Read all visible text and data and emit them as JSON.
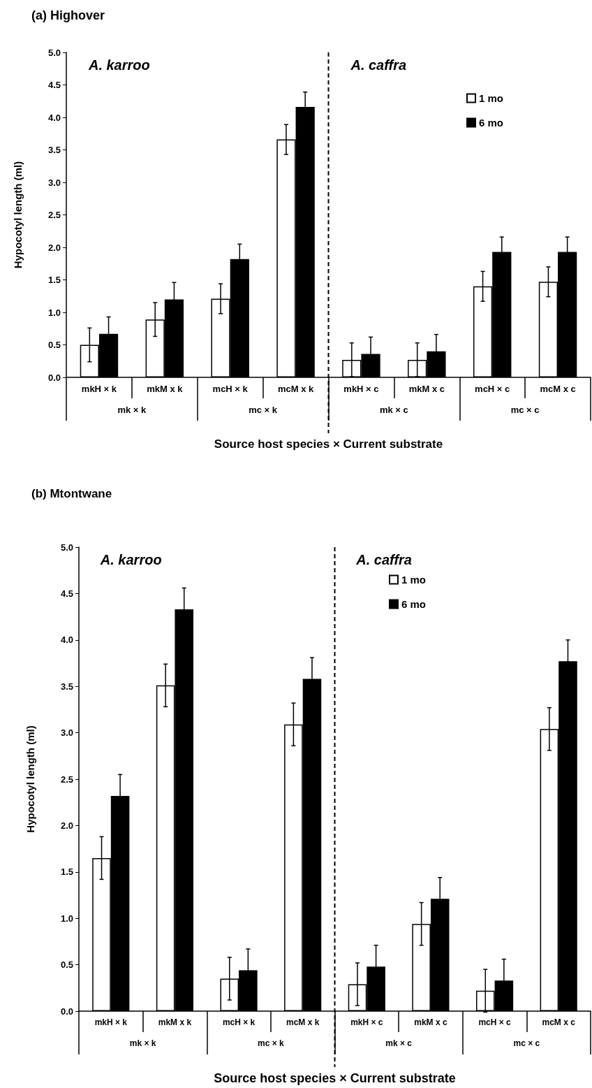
{
  "chart_data": [
    {
      "type": "bar",
      "title": "(a) Highover",
      "xlabel": "Source host species × Current substrate",
      "ylabel": "Hypocotyl length (ml)",
      "categories": [
        "mkH × k",
        "mkM x k",
        "mcH × k",
        "mcM x k",
        "mkH × c",
        "mkM x c",
        "mcH × c",
        "mcM x c"
      ],
      "series": [
        {
          "name": "1 mo",
          "color": "#ffffff",
          "values": [
            0.5,
            0.89,
            1.21,
            3.66,
            0.27,
            0.27,
            1.4,
            1.47
          ],
          "errors": [
            0.26,
            0.26,
            0.23,
            0.23,
            0.26,
            0.26,
            0.23,
            0.23
          ]
        },
        {
          "name": "6 mo",
          "color": "#000000",
          "values": [
            0.67,
            1.2,
            1.82,
            4.16,
            0.36,
            0.4,
            1.93,
            1.93
          ],
          "errors": [
            0.26,
            0.26,
            0.23,
            0.23,
            0.26,
            0.26,
            0.23,
            0.23
          ]
        }
      ],
      "annotations": [
        "A. karroo",
        "A. caffra",
        "mk × k",
        "mc × k",
        "mk × c",
        "mc × c"
      ],
      "ylim": [
        0,
        5
      ],
      "yticks": [
        {
          "value": 0,
          "label": "0.0"
        },
        {
          "value": 0.5,
          "label": "0.5"
        },
        {
          "value": 1,
          "label": "1.0"
        },
        {
          "value": 1.5,
          "label": "1.5"
        },
        {
          "value": 2,
          "label": "2.0"
        },
        {
          "value": 2.5,
          "label": "2.5"
        },
        {
          "value": 3,
          "label": "3.0"
        },
        {
          "value": 3.5,
          "label": "3.5"
        },
        {
          "value": 4,
          "label": "4.0"
        },
        {
          "value": 4.5,
          "label": "4.5"
        },
        {
          "value": 5,
          "label": "5.0"
        }
      ],
      "legend": "top right",
      "grid": false
    },
    {
      "type": "bar",
      "title": "(b) Mtontwane",
      "xlabel": "Source host species × Current substrate",
      "ylabel": "Hypocotyl length (ml)",
      "categories": [
        "mkH × k",
        "mkM x k",
        "mcH × k",
        "mcM x k",
        "mkH × c",
        "mkM x c",
        "mcH × c",
        "mcM x c"
      ],
      "series": [
        {
          "name": "1 mo",
          "color": "#ffffff",
          "values": [
            1.65,
            3.51,
            0.35,
            3.09,
            0.29,
            0.94,
            0.22,
            3.04
          ],
          "errors": [
            0.23,
            0.23,
            0.23,
            0.23,
            0.23,
            0.23,
            0.23,
            0.23
          ]
        },
        {
          "name": "6 mo",
          "color": "#000000",
          "values": [
            2.32,
            4.33,
            0.44,
            3.58,
            0.48,
            1.21,
            0.33,
            3.77
          ],
          "errors": [
            0.23,
            0.23,
            0.23,
            0.23,
            0.23,
            0.23,
            0.23,
            0.23
          ]
        }
      ],
      "annotations": [
        "A. karroo",
        "A. caffra",
        "mk × k",
        "mc × k",
        "mk × c",
        "mc × c"
      ],
      "ylim": [
        0,
        5
      ],
      "yticks": [
        {
          "value": 0,
          "label": "0.0"
        },
        {
          "value": 0.5,
          "label": "0.5"
        },
        {
          "value": 1,
          "label": "1.0"
        },
        {
          "value": 1.5,
          "label": "1.5"
        },
        {
          "value": 2,
          "label": "2.0"
        },
        {
          "value": 2.5,
          "label": "2.5"
        },
        {
          "value": 3,
          "label": "3.0"
        },
        {
          "value": 3.5,
          "label": "3.5"
        },
        {
          "value": 4,
          "label": "4.0"
        },
        {
          "value": 4.5,
          "label": "4.5"
        },
        {
          "value": 5,
          "label": "5.0"
        }
      ],
      "legend": "top right",
      "grid": false
    }
  ]
}
